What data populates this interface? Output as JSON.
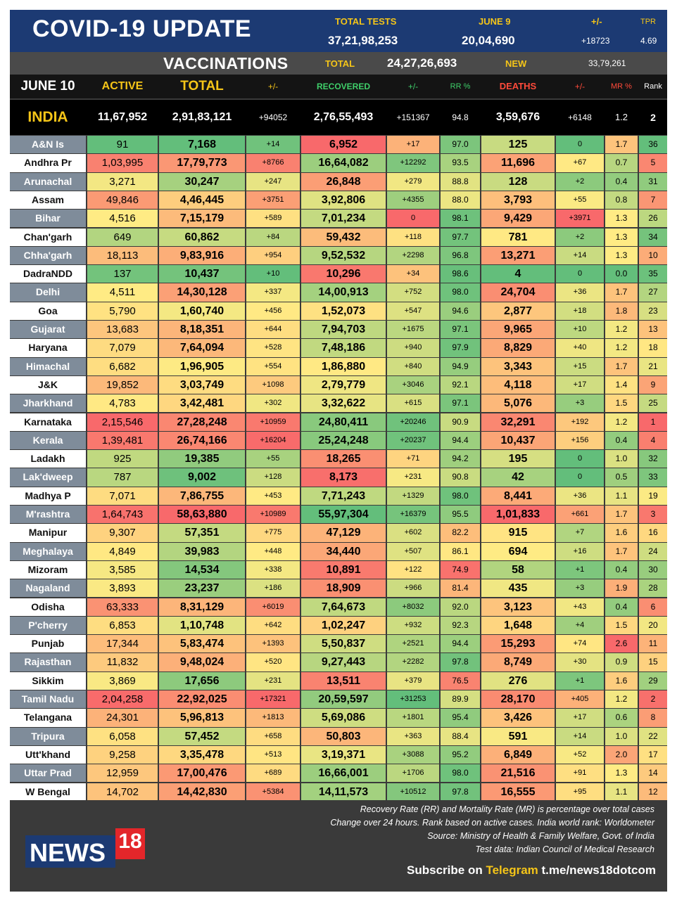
{
  "header": {
    "title": "COVID-19 UPDATE",
    "total_tests_label": "TOTAL TESTS",
    "total_tests_value": "37,21,98,253",
    "date_label": "JUNE 9",
    "date_value": "20,04,690",
    "change_label": "+/-",
    "change_value": "+18723",
    "tpr_label": "TPR",
    "tpr_value": "4.69"
  },
  "vaccinations": {
    "title": "VACCINATIONS",
    "total_label": "TOTAL",
    "total_value": "24,27,26,693",
    "new_label": "NEW",
    "new_value": "33,79,261"
  },
  "columns": {
    "date": "JUNE 10",
    "active": "ACTIVE",
    "total": "TOTAL",
    "total_change": "+/-",
    "recovered": "RECOVERED",
    "recovered_change": "+/-",
    "rr": "RR %",
    "deaths": "DEATHS",
    "deaths_change": "+/-",
    "mr": "MR %",
    "rank": "Rank"
  },
  "india": {
    "name": "INDIA",
    "active": "11,67,952",
    "total": "2,91,83,121",
    "total_change": "+94052",
    "recovered": "2,76,55,493",
    "recovered_change": "+151367",
    "rr": "94.8",
    "deaths": "3,59,676",
    "deaths_change": "+6148",
    "mr": "1.2",
    "rank": "2"
  },
  "states": [
    [
      "A&N Is",
      "91",
      "7,168",
      "+14",
      "6,952",
      "+17",
      "97.0",
      "125",
      "0",
      "1.7",
      "36"
    ],
    [
      "Andhra Pr",
      "1,03,995",
      "17,79,773",
      "+8766",
      "16,64,082",
      "+12292",
      "93.5",
      "11,696",
      "+67",
      "0.7",
      "5"
    ],
    [
      "Arunachal",
      "3,271",
      "30,247",
      "+247",
      "26,848",
      "+279",
      "88.8",
      "128",
      "+2",
      "0.4",
      "31"
    ],
    [
      "Assam",
      "49,846",
      "4,46,445",
      "+3751",
      "3,92,806",
      "+4355",
      "88.0",
      "3,793",
      "+55",
      "0.8",
      "7"
    ],
    [
      "Bihar",
      "4,516",
      "7,15,179",
      "+589",
      "7,01,234",
      "0",
      "98.1",
      "9,429",
      "+3971",
      "1.3",
      "26"
    ],
    [
      "Chan'garh",
      "649",
      "60,862",
      "+84",
      "59,432",
      "+118",
      "97.7",
      "781",
      "+2",
      "1.3",
      "34"
    ],
    [
      "Chha'garh",
      "18,113",
      "9,83,916",
      "+954",
      "9,52,532",
      "+2298",
      "96.8",
      "13,271",
      "+14",
      "1.3",
      "10"
    ],
    [
      "DadraNDD",
      "137",
      "10,437",
      "+10",
      "10,296",
      "+34",
      "98.6",
      "4",
      "0",
      "0.0",
      "35"
    ],
    [
      "Delhi",
      "4,511",
      "14,30,128",
      "+337",
      "14,00,913",
      "+752",
      "98.0",
      "24,704",
      "+36",
      "1.7",
      "27"
    ],
    [
      "Goa",
      "5,790",
      "1,60,740",
      "+456",
      "1,52,073",
      "+547",
      "94.6",
      "2,877",
      "+18",
      "1.8",
      "23"
    ],
    [
      "Gujarat",
      "13,683",
      "8,18,351",
      "+644",
      "7,94,703",
      "+1675",
      "97.1",
      "9,965",
      "+10",
      "1.2",
      "13"
    ],
    [
      "Haryana",
      "7,079",
      "7,64,094",
      "+528",
      "7,48,186",
      "+940",
      "97.9",
      "8,829",
      "+40",
      "1.2",
      "18"
    ],
    [
      "Himachal",
      "6,682",
      "1,96,905",
      "+554",
      "1,86,880",
      "+840",
      "94.9",
      "3,343",
      "+15",
      "1.7",
      "21"
    ],
    [
      "J&K",
      "19,852",
      "3,03,749",
      "+1098",
      "2,79,779",
      "+3046",
      "92.1",
      "4,118",
      "+17",
      "1.4",
      "9"
    ],
    [
      "Jharkhand",
      "4,783",
      "3,42,481",
      "+302",
      "3,32,622",
      "+615",
      "97.1",
      "5,076",
      "+3",
      "1.5",
      "25"
    ],
    [
      "Karnataka",
      "2,15,546",
      "27,28,248",
      "+10959",
      "24,80,411",
      "+20246",
      "90.9",
      "32,291",
      "+192",
      "1.2",
      "1"
    ],
    [
      "Kerala",
      "1,39,481",
      "26,74,166",
      "+16204",
      "25,24,248",
      "+20237",
      "94.4",
      "10,437",
      "+156",
      "0.4",
      "4"
    ],
    [
      "Ladakh",
      "925",
      "19,385",
      "+55",
      "18,265",
      "+71",
      "94.2",
      "195",
      "0",
      "1.0",
      "32"
    ],
    [
      "Lak'dweep",
      "787",
      "9,002",
      "+128",
      "8,173",
      "+231",
      "90.8",
      "42",
      "0",
      "0.5",
      "33"
    ],
    [
      "Madhya P",
      "7,071",
      "7,86,755",
      "+453",
      "7,71,243",
      "+1329",
      "98.0",
      "8,441",
      "+36",
      "1.1",
      "19"
    ],
    [
      "M'rashtra",
      "1,64,743",
      "58,63,880",
      "+10989",
      "55,97,304",
      "+16379",
      "95.5",
      "1,01,833",
      "+661",
      "1.7",
      "3"
    ],
    [
      "Manipur",
      "9,307",
      "57,351",
      "+775",
      "47,129",
      "+602",
      "82.2",
      "915",
      "+7",
      "1.6",
      "16"
    ],
    [
      "Meghalaya",
      "4,849",
      "39,983",
      "+448",
      "34,440",
      "+507",
      "86.1",
      "694",
      "+16",
      "1.7",
      "24"
    ],
    [
      "Mizoram",
      "3,585",
      "14,534",
      "+338",
      "10,891",
      "+122",
      "74.9",
      "58",
      "+1",
      "0.4",
      "30"
    ],
    [
      "Nagaland",
      "3,893",
      "23,237",
      "+186",
      "18,909",
      "+966",
      "81.4",
      "435",
      "+3",
      "1.9",
      "28"
    ],
    [
      "Odisha",
      "63,333",
      "8,31,129",
      "+6019",
      "7,64,673",
      "+8032",
      "92.0",
      "3,123",
      "+43",
      "0.4",
      "6"
    ],
    [
      "P'cherry",
      "6,853",
      "1,10,748",
      "+642",
      "1,02,247",
      "+932",
      "92.3",
      "1,648",
      "+4",
      "1.5",
      "20"
    ],
    [
      "Punjab",
      "17,344",
      "5,83,474",
      "+1393",
      "5,50,837",
      "+2521",
      "94.4",
      "15,293",
      "+74",
      "2.6",
      "11"
    ],
    [
      "Rajasthan",
      "11,832",
      "9,48,024",
      "+520",
      "9,27,443",
      "+2282",
      "97.8",
      "8,749",
      "+30",
      "0.9",
      "15"
    ],
    [
      "Sikkim",
      "3,869",
      "17,656",
      "+231",
      "13,511",
      "+379",
      "76.5",
      "276",
      "+1",
      "1.6",
      "29"
    ],
    [
      "Tamil Nadu",
      "2,04,258",
      "22,92,025",
      "+17321",
      "20,59,597",
      "+31253",
      "89.9",
      "28,170",
      "+405",
      "1.2",
      "2"
    ],
    [
      "Telangana",
      "24,301",
      "5,96,813",
      "+1813",
      "5,69,086",
      "+1801",
      "95.4",
      "3,426",
      "+17",
      "0.6",
      "8"
    ],
    [
      "Tripura",
      "6,058",
      "57,452",
      "+658",
      "50,803",
      "+363",
      "88.4",
      "591",
      "+14",
      "1.0",
      "22"
    ],
    [
      "Utt'khand",
      "9,258",
      "3,35,478",
      "+513",
      "3,19,371",
      "+3088",
      "95.2",
      "6,849",
      "+52",
      "2.0",
      "17"
    ],
    [
      "Uttar Prad",
      "12,959",
      "17,00,476",
      "+689",
      "16,66,001",
      "+1706",
      "98.0",
      "21,516",
      "+91",
      "1.3",
      "14"
    ],
    [
      "W Bengal",
      "14,702",
      "14,42,830",
      "+5384",
      "14,11,573",
      "+10512",
      "97.8",
      "16,555",
      "+95",
      "1.1",
      "12"
    ]
  ],
  "footer": {
    "notes": [
      "Recovery Rate (RR) and Mortality Rate (MR) is percentage over total cases",
      "Change over 24 hours. Rank based on active cases. India world rank: Worldometer",
      "Source: Ministry of Health & Family Welfare, Govt. of India",
      "Test data: Indian Council of Medical Research"
    ],
    "logo_text": "NEWS",
    "logo_number": "18",
    "subscribe_prefix": "Subscribe on ",
    "subscribe_platform": "Telegram",
    "subscribe_link": " t.me/news18dotcom"
  },
  "colors": {
    "header_bg": "#1c3a73",
    "accent_yellow": "#f5c518",
    "recovered_green": "#3fcf6a",
    "deaths_red": "#ff4a3a",
    "green": "#63be7b",
    "yellow": "#ffeb84",
    "red": "#f8696b"
  }
}
